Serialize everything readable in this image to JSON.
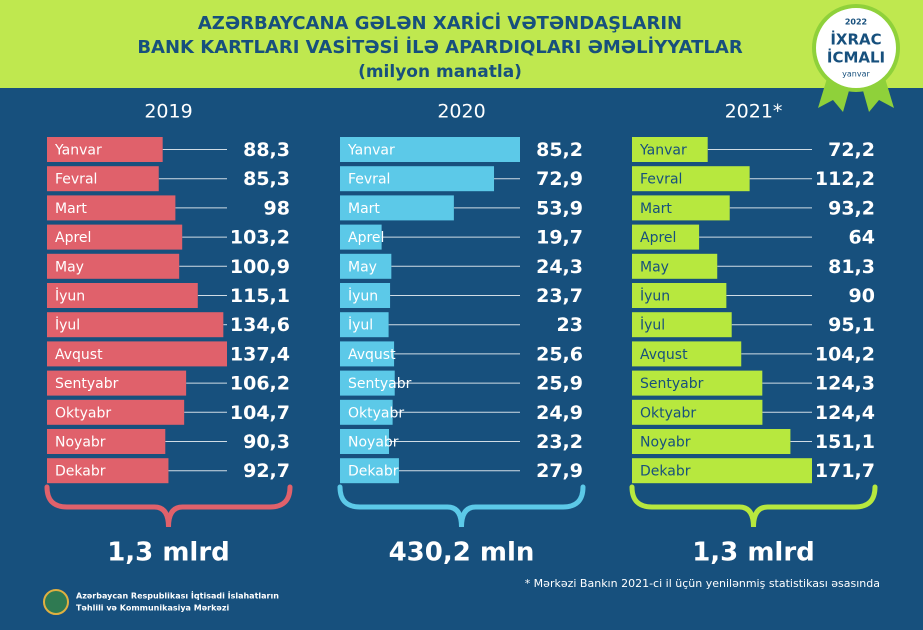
{
  "header": {
    "title_lines": [
      "AZƏRBAYCANA GƏLƏN XARİCİ VƏTƏNDAŞLARIN",
      "BANK KARTLARI VASİTƏSİ İLƏ APARDIQLARI ƏMƏLİYYATLAR",
      "(milyon manatla)"
    ],
    "badge": {
      "year": "2022",
      "line1": "İXRAC",
      "line2": "İCMALI",
      "month": "yanvar"
    }
  },
  "chart_data": [
    {
      "type": "bar",
      "title": "2019",
      "color": "#e0616b",
      "total": "1,3 mlrd",
      "categories": [
        "Yanvar",
        "Fevral",
        "Mart",
        "Aprel",
        "May",
        "İyun",
        "İyul",
        "Avqust",
        "Sentyabr",
        "Oktyabr",
        "Noyabr",
        "Dekabr"
      ],
      "values": [
        88.3,
        85.3,
        98,
        103.2,
        100.9,
        115.1,
        134.6,
        137.4,
        106.2,
        104.7,
        90.3,
        92.7
      ],
      "value_labels": [
        "88,3",
        "85,3",
        "98",
        "103,2",
        "100,9",
        "115,1",
        "134,6",
        "137,4",
        "106,2",
        "104,7",
        "90,3",
        "92,7"
      ]
    },
    {
      "type": "bar",
      "title": "2020",
      "color": "#5cc9e8",
      "total": "430,2 mln",
      "categories": [
        "Yanvar",
        "Fevral",
        "Mart",
        "Aprel",
        "May",
        "İyun",
        "İyul",
        "Avqust",
        "Sentyabr",
        "Oktyabr",
        "Noyabr",
        "Dekabr"
      ],
      "values": [
        85.2,
        72.9,
        53.9,
        19.7,
        24.3,
        23.7,
        23,
        25.6,
        25.9,
        24.9,
        23.2,
        27.9
      ],
      "value_labels": [
        "85,2",
        "72,9",
        "53,9",
        "19,7",
        "24,3",
        "23,7",
        "23",
        "25,6",
        "25,9",
        "24,9",
        "23,2",
        "27,9"
      ]
    },
    {
      "type": "bar",
      "title": "2021*",
      "color": "#b7e83e",
      "total": "1,3 mlrd",
      "categories": [
        "Yanvar",
        "Fevral",
        "Mart",
        "Aprel",
        "May",
        "İyun",
        "İyul",
        "Avqust",
        "Sentyabr",
        "Oktyabr",
        "Noyabr",
        "Dekabr"
      ],
      "values": [
        72.2,
        112.2,
        93.2,
        64,
        81.3,
        90,
        95.1,
        104.2,
        124.3,
        124.4,
        151.1,
        171.7
      ],
      "value_labels": [
        "72,2",
        "112,2",
        "93,2",
        "64",
        "81,3",
        "90",
        "95,1",
        "104,2",
        "124,3",
        "124,4",
        "151,1",
        "171,7"
      ]
    }
  ],
  "footnote": "* Mərkəzi Bankın 2021-ci il üçün yenilənmiş statistikası əsasında",
  "organization": [
    "Azərbaycan Respublikası İqtisadi İslahatların",
    "Təhlili və Kommunikasiya Mərkəzi"
  ]
}
